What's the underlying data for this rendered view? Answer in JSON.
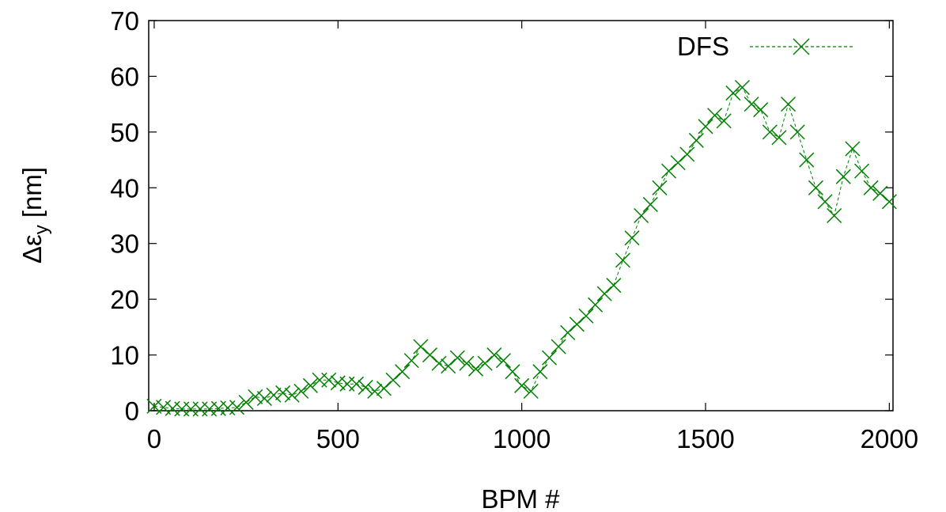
{
  "chart_data": {
    "type": "scatter",
    "title": "",
    "xlabel": "BPM #",
    "ylabel": {
      "base": "Δε",
      "subscript": "y",
      "suffix": " [nm]"
    },
    "xlim": [
      -15,
      2010
    ],
    "ylim": [
      0,
      70
    ],
    "xticks": [
      0,
      500,
      1000,
      1500,
      2000
    ],
    "yticks": [
      0,
      10,
      20,
      30,
      40,
      50,
      60,
      70
    ],
    "grid": false,
    "legend": {
      "position": "top-right"
    },
    "series": [
      {
        "name": "DFS",
        "color": "#008000",
        "marker": "x",
        "line_style": "dashed",
        "points": [
          [
            0,
            0.8
          ],
          [
            25,
            0.6
          ],
          [
            50,
            0.4
          ],
          [
            75,
            0.3
          ],
          [
            100,
            0.3
          ],
          [
            125,
            0.3
          ],
          [
            150,
            0.3
          ],
          [
            175,
            0.4
          ],
          [
            200,
            0.5
          ],
          [
            225,
            0.6
          ],
          [
            250,
            1.5
          ],
          [
            275,
            2.5
          ],
          [
            300,
            2.2
          ],
          [
            325,
            2.8
          ],
          [
            350,
            3.2
          ],
          [
            375,
            2.8
          ],
          [
            400,
            3.5
          ],
          [
            425,
            4.5
          ],
          [
            450,
            5.5
          ],
          [
            475,
            5.5
          ],
          [
            500,
            5.0
          ],
          [
            525,
            4.8
          ],
          [
            550,
            4.8
          ],
          [
            575,
            4.2
          ],
          [
            600,
            3.5
          ],
          [
            625,
            4.0
          ],
          [
            650,
            5.5
          ],
          [
            675,
            7.0
          ],
          [
            700,
            9.0
          ],
          [
            725,
            11.5
          ],
          [
            750,
            10.0
          ],
          [
            775,
            8.5
          ],
          [
            800,
            8.0
          ],
          [
            825,
            9.5
          ],
          [
            850,
            8.5
          ],
          [
            875,
            7.5
          ],
          [
            900,
            8.5
          ],
          [
            925,
            10.0
          ],
          [
            950,
            9.0
          ],
          [
            975,
            7.0
          ],
          [
            1000,
            4.5
          ],
          [
            1025,
            3.5
          ],
          [
            1050,
            7.0
          ],
          [
            1075,
            9.5
          ],
          [
            1100,
            11.5
          ],
          [
            1125,
            14.0
          ],
          [
            1150,
            15.5
          ],
          [
            1175,
            17.0
          ],
          [
            1200,
            19.0
          ],
          [
            1225,
            21.0
          ],
          [
            1250,
            22.5
          ],
          [
            1275,
            27.0
          ],
          [
            1300,
            31.0
          ],
          [
            1325,
            35.0
          ],
          [
            1350,
            37.0
          ],
          [
            1375,
            40.0
          ],
          [
            1400,
            43.0
          ],
          [
            1425,
            44.5
          ],
          [
            1450,
            46.0
          ],
          [
            1475,
            48.5
          ],
          [
            1500,
            51.0
          ],
          [
            1525,
            53.0
          ],
          [
            1550,
            52.0
          ],
          [
            1575,
            57.0
          ],
          [
            1600,
            58.0
          ],
          [
            1625,
            55.0
          ],
          [
            1650,
            54.0
          ],
          [
            1675,
            50.0
          ],
          [
            1700,
            49.0
          ],
          [
            1725,
            55.0
          ],
          [
            1750,
            50.0
          ],
          [
            1775,
            45.0
          ],
          [
            1800,
            40.0
          ],
          [
            1825,
            37.5
          ],
          [
            1850,
            35.0
          ],
          [
            1875,
            42.0
          ],
          [
            1900,
            47.0
          ],
          [
            1925,
            43.0
          ],
          [
            1950,
            40.0
          ],
          [
            1975,
            39.0
          ],
          [
            2000,
            37.5
          ]
        ]
      }
    ]
  }
}
